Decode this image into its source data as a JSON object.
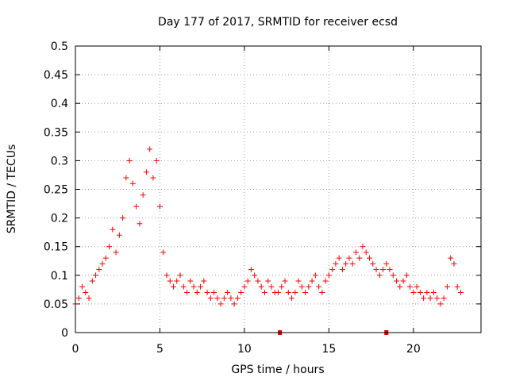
{
  "chart_data": {
    "type": "scatter",
    "title": "Day 177 of 2017, SRMTID for receiver ecsd",
    "xlabel": "GPS time / hours",
    "ylabel": "SRMTID / TECUs",
    "xlim": [
      0,
      24
    ],
    "ylim": [
      0,
      0.5
    ],
    "x_ticks": [
      0,
      5,
      10,
      15,
      20
    ],
    "x_tick_labels": [
      "0",
      "5",
      "10",
      "15",
      "20"
    ],
    "y_ticks": [
      0,
      0.05,
      0.1,
      0.15,
      0.2,
      0.25,
      0.3,
      0.35,
      0.4,
      0.45,
      0.5
    ],
    "y_tick_labels": [
      "0",
      "0.05",
      "0.1",
      "0.15",
      "0.2",
      "0.25",
      "0.3",
      "0.35",
      "0.4",
      "0.45",
      "0.5"
    ],
    "grid": true,
    "marker": "+",
    "color": "#ff0000",
    "gap_markers_x": [
      12.1,
      18.4
    ],
    "series": [
      {
        "name": "SRMTID",
        "x": [
          0.0,
          0.2,
          0.4,
          0.6,
          0.8,
          1.0,
          1.2,
          1.4,
          1.6,
          1.8,
          2.0,
          2.2,
          2.4,
          2.6,
          2.8,
          3.0,
          3.2,
          3.4,
          3.6,
          3.8,
          4.0,
          4.2,
          4.4,
          4.6,
          4.8,
          5.0,
          5.2,
          5.4,
          5.6,
          5.8,
          6.0,
          6.2,
          6.4,
          6.6,
          6.8,
          7.0,
          7.2,
          7.4,
          7.6,
          7.8,
          8.0,
          8.2,
          8.4,
          8.6,
          8.8,
          9.0,
          9.2,
          9.4,
          9.6,
          9.8,
          10.0,
          10.2,
          10.4,
          10.6,
          10.8,
          11.0,
          11.2,
          11.4,
          11.6,
          11.8,
          12.0,
          12.2,
          12.4,
          12.6,
          12.8,
          13.0,
          13.2,
          13.4,
          13.6,
          13.8,
          14.0,
          14.2,
          14.4,
          14.6,
          14.8,
          15.0,
          15.2,
          15.4,
          15.6,
          15.8,
          16.0,
          16.2,
          16.4,
          16.6,
          16.8,
          17.0,
          17.2,
          17.4,
          17.6,
          17.8,
          18.0,
          18.2,
          18.4,
          18.6,
          18.8,
          19.0,
          19.2,
          19.4,
          19.6,
          19.8,
          20.0,
          20.2,
          20.4,
          20.6,
          20.8,
          21.0,
          21.2,
          21.4,
          21.6,
          21.8,
          22.0,
          22.2,
          22.4,
          22.6,
          22.8
        ],
        "y": [
          0.05,
          0.06,
          0.08,
          0.07,
          0.06,
          0.09,
          0.1,
          0.11,
          0.12,
          0.13,
          0.15,
          0.18,
          0.14,
          0.17,
          0.2,
          0.27,
          0.3,
          0.26,
          0.22,
          0.19,
          0.24,
          0.28,
          0.32,
          0.27,
          0.3,
          0.22,
          0.14,
          0.1,
          0.09,
          0.08,
          0.09,
          0.1,
          0.08,
          0.07,
          0.09,
          0.08,
          0.07,
          0.08,
          0.09,
          0.07,
          0.06,
          0.07,
          0.06,
          0.05,
          0.06,
          0.07,
          0.06,
          0.05,
          0.06,
          0.07,
          0.08,
          0.09,
          0.11,
          0.1,
          0.09,
          0.08,
          0.07,
          0.09,
          0.08,
          0.07,
          0.07,
          0.08,
          0.09,
          0.07,
          0.06,
          0.07,
          0.09,
          0.08,
          0.07,
          0.08,
          0.09,
          0.1,
          0.08,
          0.07,
          0.09,
          0.1,
          0.11,
          0.12,
          0.13,
          0.11,
          0.12,
          0.13,
          0.12,
          0.14,
          0.13,
          0.15,
          0.14,
          0.13,
          0.12,
          0.11,
          0.1,
          0.11,
          0.12,
          0.11,
          0.1,
          0.09,
          0.08,
          0.09,
          0.1,
          0.08,
          0.07,
          0.08,
          0.07,
          0.06,
          0.07,
          0.06,
          0.07,
          0.06,
          0.05,
          0.06,
          0.08,
          0.13,
          0.12,
          0.08,
          0.07
        ]
      }
    ]
  }
}
